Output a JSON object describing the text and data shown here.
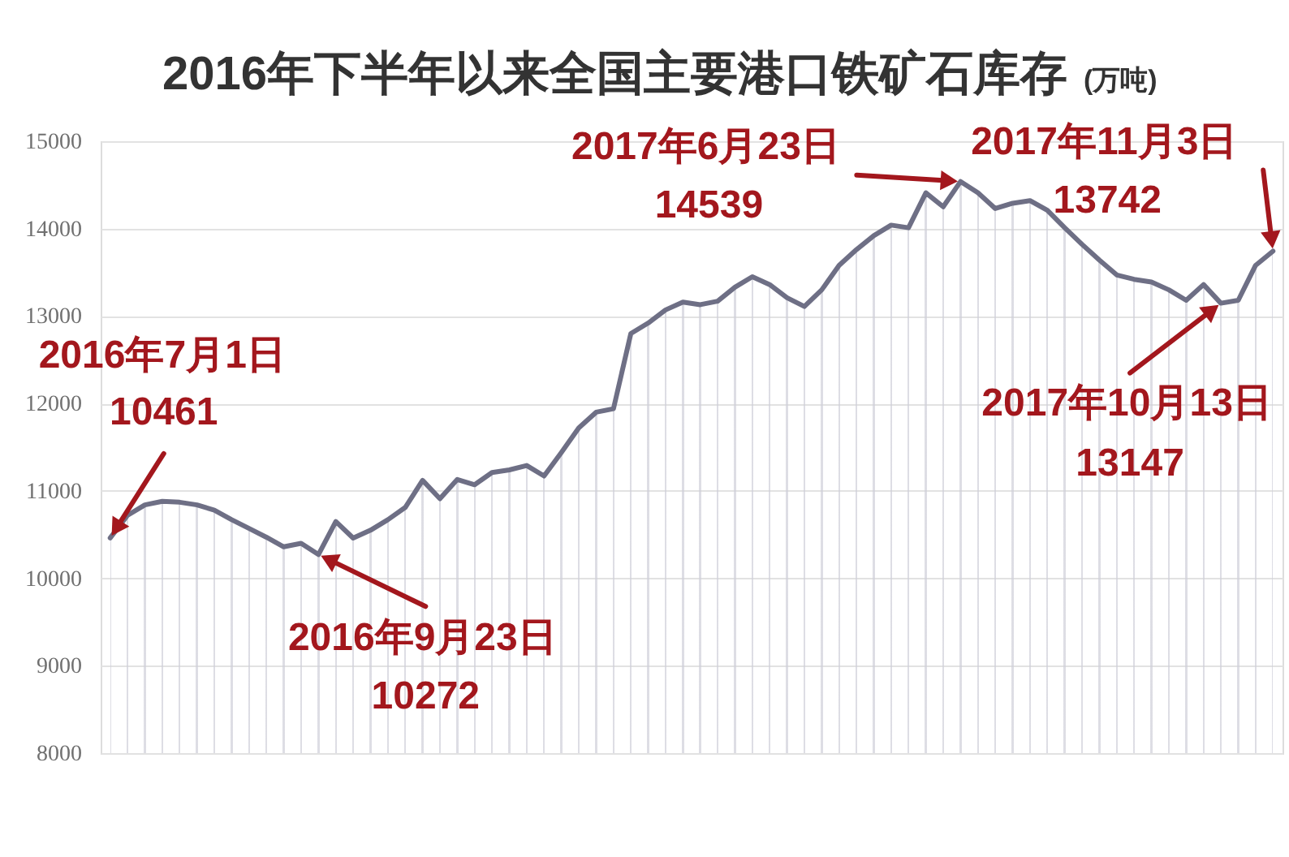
{
  "chart_data": {
    "type": "area",
    "title": "2016年下半年以来全国主要港口铁矿石库存",
    "subtitle": "(万吨)",
    "categories": [
      null,
      null,
      null,
      null,
      null,
      null,
      null,
      null,
      null,
      null,
      null,
      null,
      null,
      null,
      null,
      null,
      null,
      null,
      null,
      null,
      null,
      null,
      null,
      null,
      null,
      null,
      null,
      null,
      null,
      null,
      null,
      null,
      null,
      null,
      null,
      null,
      null,
      null,
      null,
      null,
      null,
      null,
      null,
      null,
      null,
      null,
      null,
      null,
      null,
      null,
      null,
      null,
      null,
      null,
      null,
      null,
      null,
      null,
      null,
      null,
      null,
      null,
      null,
      null,
      null,
      null,
      null,
      null
    ],
    "series": [
      {
        "color": "#6e6f85",
        "values": [
          10461,
          10720,
          10840,
          10880,
          10870,
          10840,
          10780,
          10670,
          10570,
          10470,
          10360,
          10400,
          10272,
          10650,
          10460,
          10550,
          10670,
          10810,
          11120,
          10910,
          11130,
          11070,
          11210,
          11240,
          11290,
          11170,
          11440,
          11720,
          11900,
          11940,
          12800,
          12920,
          13070,
          13160,
          13130,
          13170,
          13330,
          13450,
          13360,
          13210,
          13110,
          13300,
          13580,
          13760,
          13920,
          14040,
          14010,
          14410,
          14250,
          14539,
          14410,
          14230,
          14290,
          14320,
          14210,
          14010,
          13820,
          13640,
          13470,
          13420,
          13390,
          13300,
          13180,
          13360,
          13147,
          13180,
          13580,
          13742
        ]
      }
    ],
    "ylim": [
      8000,
      15000
    ],
    "yticks": [
      8000,
      9000,
      10000,
      11000,
      12000,
      13000,
      14000,
      15000
    ],
    "grid": "y",
    "tick_labels": "y",
    "marker": "none",
    "line_style": "solid",
    "annotations": [
      "2016年7月1日",
      "10461",
      "2016年9月23日",
      "10272",
      "2017年6月23日",
      "14539",
      "2017年10月13日",
      "13147",
      "2017年11月3日",
      "13742"
    ]
  }
}
